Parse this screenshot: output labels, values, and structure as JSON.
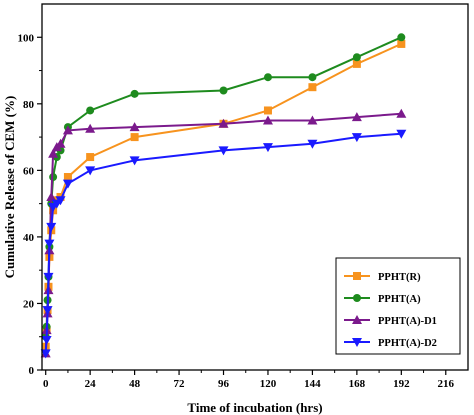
{
  "chart_data": {
    "type": "line",
    "xlabel": "Time of incubation (hrs)",
    "ylabel": "Cumulative Release of CEM (%)",
    "xlim": [
      -2,
      228
    ],
    "ylim": [
      0,
      110
    ],
    "xticks": [
      0,
      24,
      48,
      72,
      96,
      120,
      144,
      168,
      192,
      216
    ],
    "yticks": [
      0,
      20,
      40,
      60,
      80,
      100
    ],
    "grid": false,
    "legend_position": "bottom-right",
    "series": [
      {
        "name": "PPHT(R)",
        "color": "#f7931e",
        "marker": "square",
        "x": [
          0,
          0.5,
          1,
          1.5,
          2,
          3,
          4,
          6,
          8,
          12,
          24,
          48,
          96,
          120,
          144,
          168,
          192
        ],
        "y": [
          7,
          12,
          18,
          25,
          34,
          42,
          48,
          51,
          52,
          58,
          64,
          70,
          74,
          78,
          85,
          92,
          98
        ]
      },
      {
        "name": "PPHT(A)",
        "color": "#1e8b1e",
        "marker": "circle",
        "x": [
          0,
          0.5,
          1,
          1.5,
          2,
          3,
          4,
          6,
          8,
          12,
          24,
          48,
          96,
          120,
          144,
          168,
          192
        ],
        "y": [
          10,
          13,
          21,
          28,
          37,
          50,
          58,
          64,
          66,
          73,
          78,
          83,
          84,
          88,
          88,
          94,
          100
        ]
      },
      {
        "name": "PPHT(A)-D1",
        "color": "#7b1a8c",
        "marker": "triangle-up",
        "x": [
          0,
          0.5,
          1,
          1.5,
          2,
          3,
          4,
          6,
          8,
          12,
          24,
          48,
          96,
          120,
          144,
          168,
          192
        ],
        "y": [
          5,
          12,
          17,
          24,
          36,
          52,
          65,
          67,
          68,
          72,
          72.5,
          73,
          74,
          75,
          75,
          76,
          77
        ]
      },
      {
        "name": "PPHT(A)-D2",
        "color": "#1a1aff",
        "marker": "triangle-down",
        "x": [
          0,
          0.5,
          1,
          1.5,
          2,
          3,
          4,
          6,
          8,
          12,
          24,
          48,
          96,
          120,
          144,
          168,
          192
        ],
        "y": [
          5,
          9,
          18,
          28,
          38,
          43,
          49,
          50,
          51,
          56,
          60,
          63,
          66,
          67,
          68,
          70,
          71
        ]
      }
    ]
  }
}
